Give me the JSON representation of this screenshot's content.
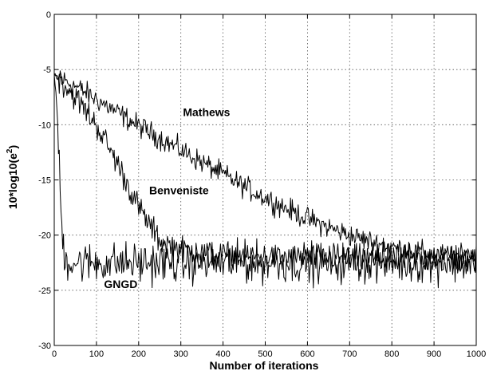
{
  "chart_data": {
    "type": "line",
    "xlabel": "Number of iterations",
    "ylabel": "10*log10(e^2)",
    "xlim": [
      0,
      1000
    ],
    "ylim": [
      -30,
      0
    ],
    "xticks": [
      0,
      100,
      200,
      300,
      400,
      500,
      600,
      700,
      800,
      900,
      1000
    ],
    "yticks": [
      0,
      -5,
      -10,
      -15,
      -20,
      -25,
      -30
    ],
    "grid": true,
    "line_color": "#000000",
    "series": [
      {
        "name": "Mathews",
        "x": [
          0,
          10,
          50,
          100,
          150,
          200,
          250,
          300,
          350,
          400,
          450,
          500,
          550,
          600,
          650,
          700,
          750,
          800,
          850,
          900,
          950,
          1000
        ],
        "y": [
          -5.5,
          -5.7,
          -6.5,
          -7.7,
          -8.9,
          -10.1,
          -11.2,
          -12.3,
          -13.4,
          -14.5,
          -15.6,
          -16.6,
          -17.6,
          -18.5,
          -19.3,
          -20.0,
          -20.6,
          -21.1,
          -21.4,
          -21.7,
          -21.9,
          -22.0
        ],
        "noise": 0.5
      },
      {
        "name": "Benveniste",
        "x": [
          0,
          10,
          50,
          100,
          150,
          200,
          250,
          300,
          350,
          400,
          450,
          500,
          550,
          600,
          650,
          700,
          750,
          800,
          850,
          900,
          950,
          1000
        ],
        "y": [
          -5.5,
          -5.8,
          -7.5,
          -10.0,
          -13.5,
          -17.5,
          -20.5,
          -21.3,
          -21.6,
          -21.8,
          -21.9,
          -22.0,
          -22.0,
          -22.1,
          -22.1,
          -22.1,
          -22.1,
          -22.2,
          -22.2,
          -22.2,
          -22.2,
          -22.2
        ],
        "noise": 0.6
      },
      {
        "name": "GNGD",
        "x": [
          0,
          5,
          10,
          15,
          20,
          25,
          30,
          40,
          60,
          100,
          200,
          300,
          400,
          500,
          600,
          700,
          800,
          900,
          1000
        ],
        "y": [
          -5.5,
          -7.5,
          -12.0,
          -17.0,
          -20.5,
          -22.0,
          -22.3,
          -22.4,
          -22.5,
          -22.5,
          -22.5,
          -22.5,
          -22.5,
          -22.5,
          -22.5,
          -22.5,
          -22.5,
          -22.5,
          -22.5
        ],
        "noise": 0.9
      }
    ],
    "annotations": [
      {
        "text": "Mathews",
        "x": 305,
        "y": -9.2
      },
      {
        "text": "Benveniste",
        "x": 225,
        "y": -16.3
      },
      {
        "text": "GNGD",
        "x": 118,
        "y": -24.8
      }
    ]
  }
}
